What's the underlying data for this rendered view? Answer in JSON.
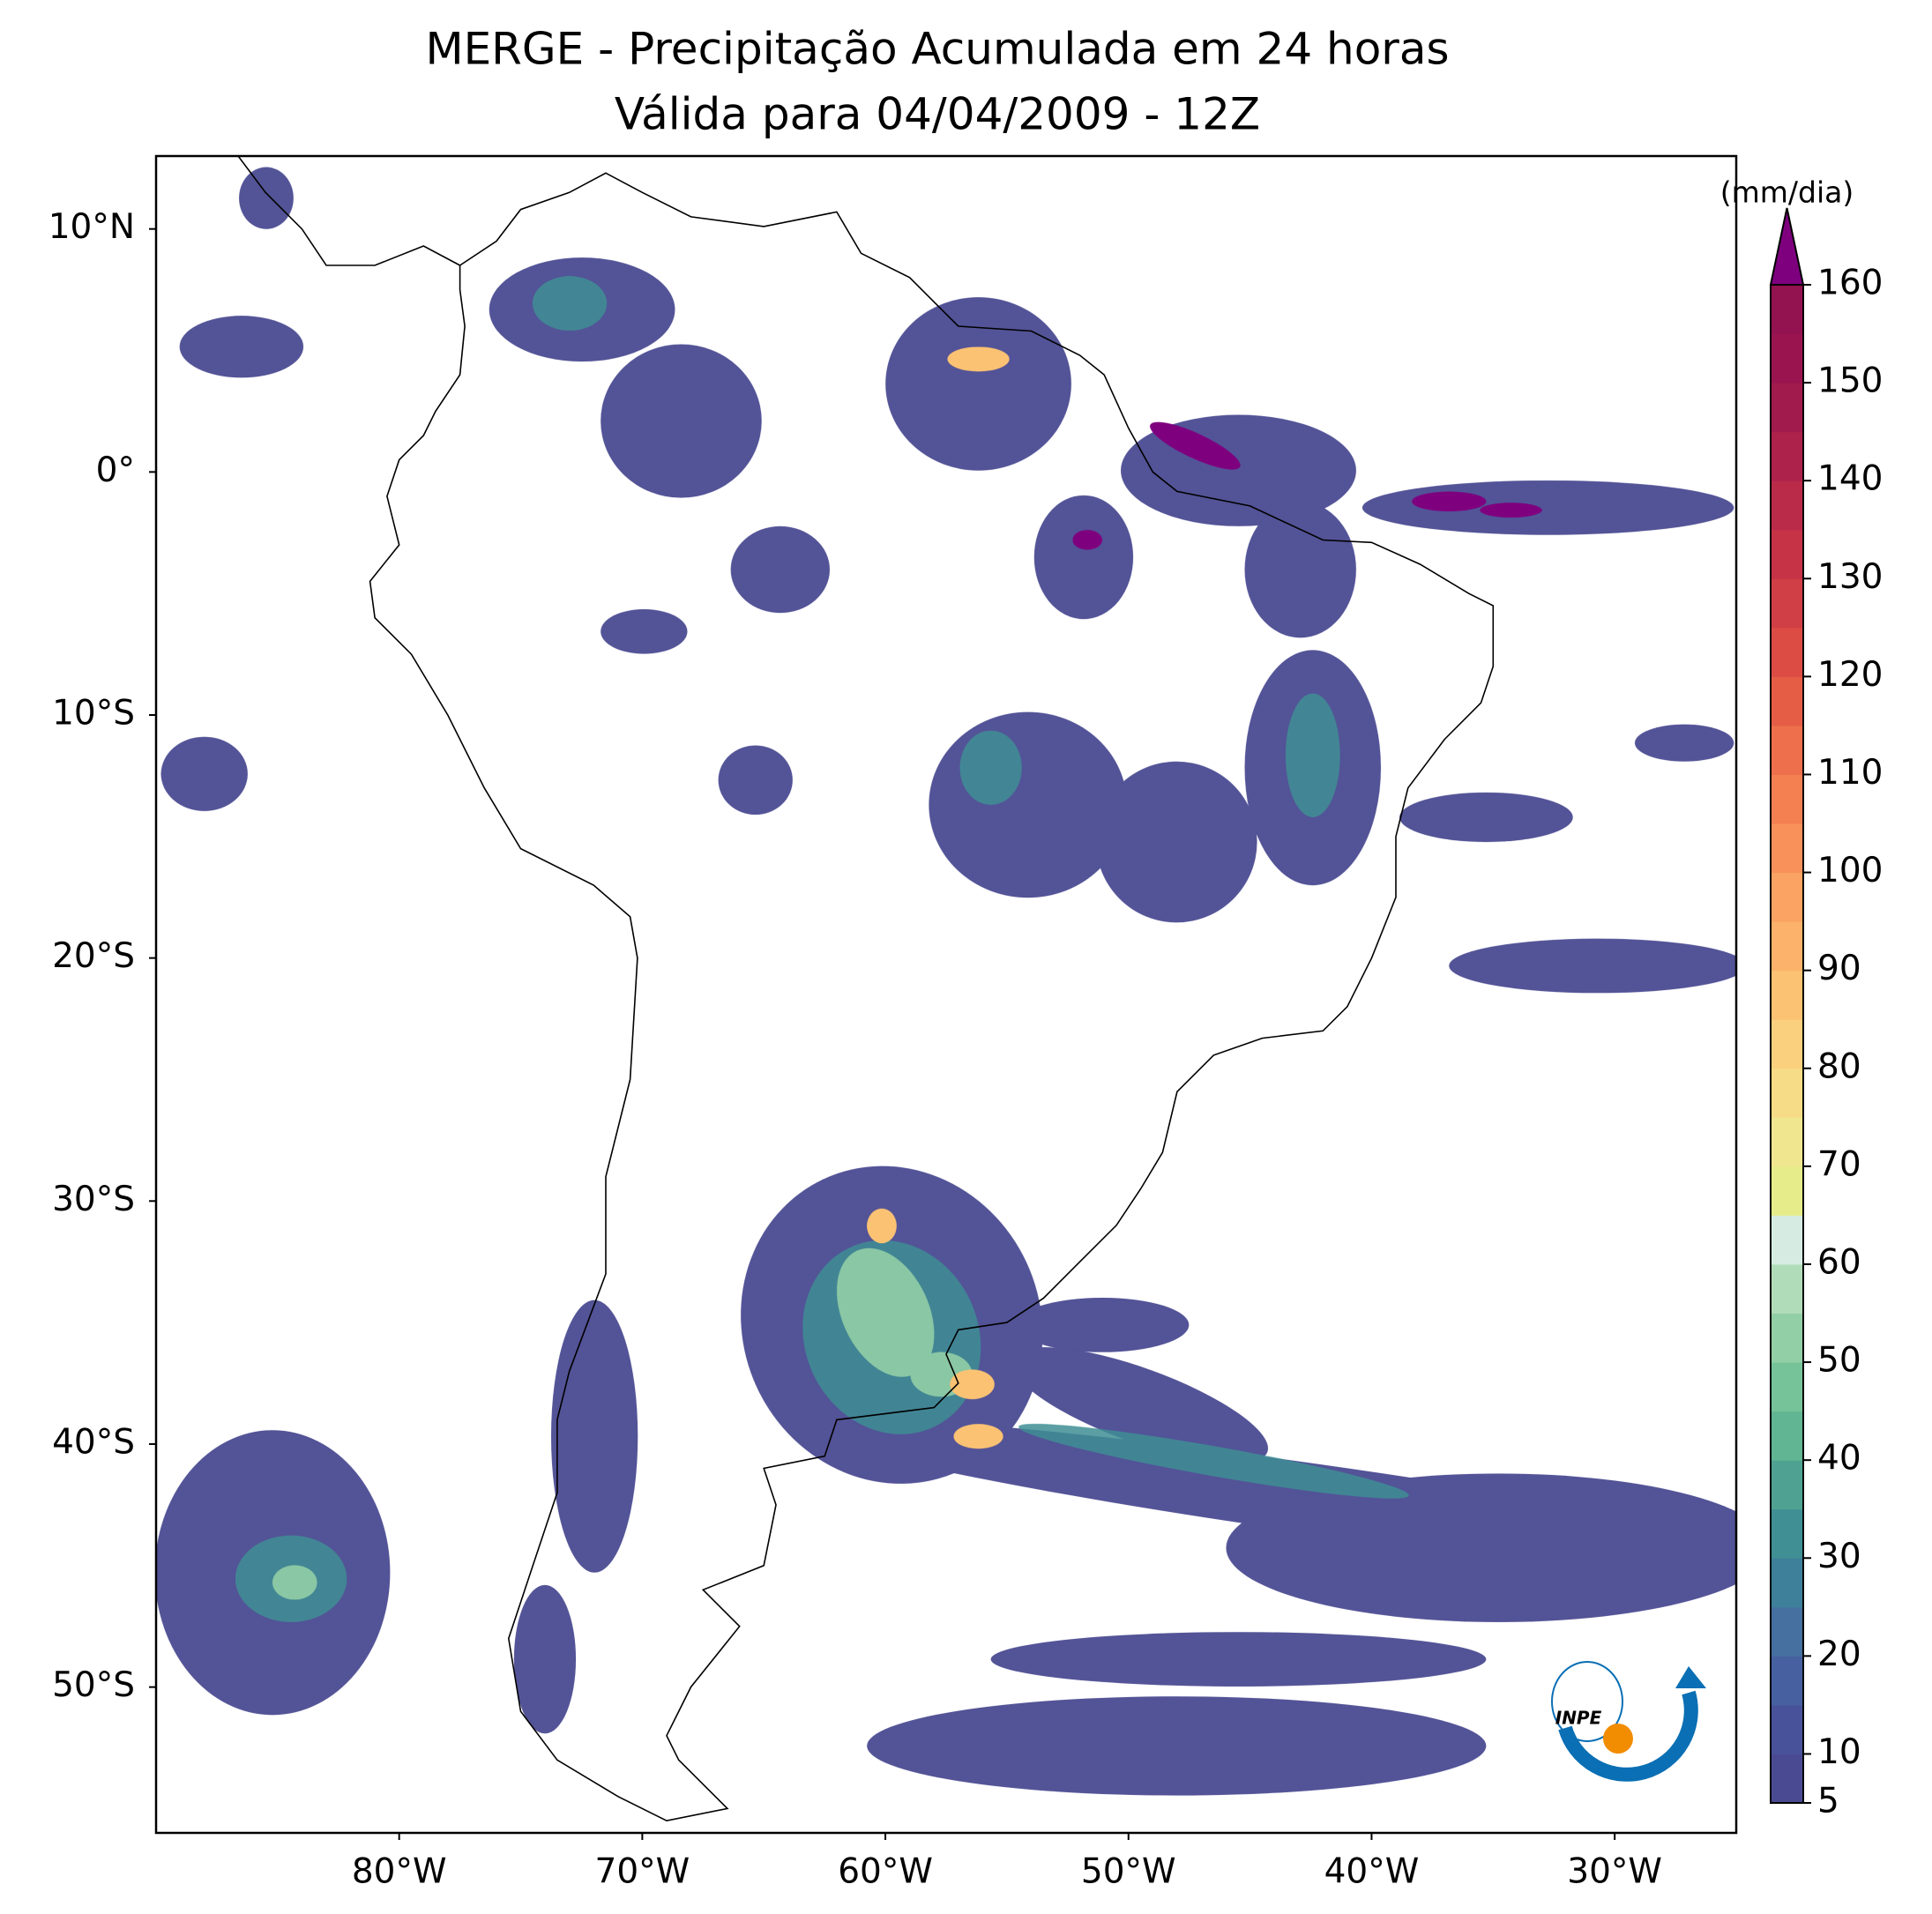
{
  "chart_data": {
    "type": "map",
    "title": "MERGE - Precipitação Acumulada em 24 horas",
    "subtitle": "Válida para 04/04/2009 - 12Z",
    "xlim": [
      -90,
      -25
    ],
    "ylim": [
      -56,
      13
    ],
    "xticks": [
      {
        "value": -80,
        "label": "80°W"
      },
      {
        "value": -70,
        "label": "70°W"
      },
      {
        "value": -60,
        "label": "60°W"
      },
      {
        "value": -50,
        "label": "50°W"
      },
      {
        "value": -40,
        "label": "40°W"
      },
      {
        "value": -30,
        "label": "30°W"
      }
    ],
    "yticks": [
      {
        "value": 10,
        "label": "10°N"
      },
      {
        "value": 0,
        "label": "0°"
      },
      {
        "value": -10,
        "label": "10°S"
      },
      {
        "value": -20,
        "label": "20°S"
      },
      {
        "value": -30,
        "label": "30°S"
      },
      {
        "value": -40,
        "label": "40°S"
      },
      {
        "value": -50,
        "label": "50°S"
      }
    ],
    "colorbar": {
      "label": "(mm/dia)",
      "levels": [
        5,
        10,
        15,
        20,
        25,
        30,
        35,
        40,
        45,
        50,
        55,
        60,
        65,
        70,
        75,
        80,
        85,
        90,
        95,
        100,
        105,
        110,
        115,
        120,
        125,
        130,
        135,
        140,
        145,
        150,
        155,
        160
      ],
      "colors": [
        "#4a4a92",
        "#48529a",
        "#4760a0",
        "#46709f",
        "#3e7f9a",
        "#3f8f94",
        "#4fa292",
        "#62b592",
        "#76c39a",
        "#93cfa6",
        "#b1dcb9",
        "#d6ece2",
        "#e6ec8a",
        "#f0e690",
        "#f6dc86",
        "#fad07e",
        "#fbc273",
        "#fcb26a",
        "#fba363",
        "#f9925a",
        "#f48052",
        "#ee6f4b",
        "#e65d46",
        "#dc4c45",
        "#d13f46",
        "#c63347",
        "#ba2a49",
        "#ad224b",
        "#a11b4d",
        "#9a1550",
        "#931250"
      ],
      "extend_color": "#7f007f",
      "ticks": [
        5,
        10,
        20,
        30,
        40,
        50,
        60,
        70,
        80,
        90,
        100,
        110,
        120,
        130,
        140,
        150,
        160
      ]
    },
    "logo_text": "INPE"
  }
}
